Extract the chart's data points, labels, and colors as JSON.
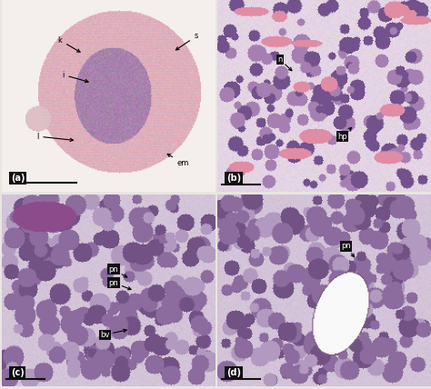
{
  "bg_color": "#e8e6e0",
  "panel_bg_a": "#f5f0ee",
  "panel_bg_b": "#e8e0e8",
  "panel_bg_c": "#ddd5dd",
  "panel_bg_d": "#ddd5dd",
  "labels": {
    "a": "(a)",
    "b": "(b)",
    "c": "(c)",
    "d": "(d)"
  },
  "figsize": [
    4.74,
    4.28
  ],
  "dpi": 100
}
